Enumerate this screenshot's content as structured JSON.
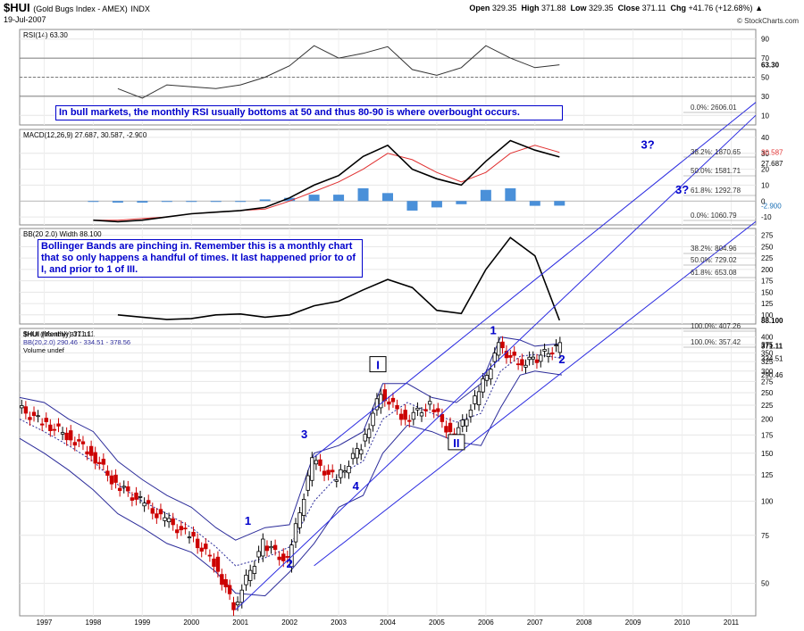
{
  "header": {
    "symbol": "$HUI",
    "name": "(Gold Bugs Index - AMEX)",
    "exchange": "INDX",
    "date": "19-Jul-2007",
    "open_label": "Open",
    "open": "329.35",
    "high_label": "High",
    "high": "371.88",
    "low_label": "Low",
    "low": "329.35",
    "close_label": "Close",
    "close": "371.11",
    "chg_label": "Chg",
    "chg": "+41.76 (+12.68%)",
    "chg_icon": "triangle-up-icon",
    "brand": "© StockCharts.com",
    "accent_color": "#0000cc",
    "up_color": "#000000",
    "down_color": "#cc0000"
  },
  "annotations": {
    "rsi_note": "In bull markets, the monthly RSI usually bottoms at 50 and thus 80-90 is where overbought occurs.",
    "bb_note": "Bollinger Bands are pinching in. Remember this is a monthly chart that so only happens a handful of times. It last happened prior to  of I, and prior to 1 of III.",
    "wave_labels": [
      {
        "text": "1",
        "x": 2001.15,
        "y": 82
      },
      {
        "text": "2",
        "x": 2002.0,
        "y": 57
      },
      {
        "text": "3",
        "x": 2002.3,
        "y": 170
      },
      {
        "text": "4",
        "x": 2003.35,
        "y": 110
      },
      {
        "text": "I",
        "x": 2003.8,
        "y": 305
      },
      {
        "text": "II",
        "x": 2005.4,
        "y": 158
      },
      {
        "text": "1",
        "x": 2006.15,
        "y": 410
      },
      {
        "text": "2",
        "x": 2007.55,
        "y": 320
      },
      {
        "text": "3?",
        "x": 2009.3,
        "y": 1960
      },
      {
        "text": "3?",
        "x": 2010.0,
        "y": 1340
      }
    ]
  },
  "chart_data": [
    {
      "type": "line",
      "title": "RSI(14) 63.30",
      "indicator": "RSI(14)",
      "last_value": "63.30",
      "yticks": [
        10,
        30,
        50,
        70,
        90
      ],
      "ylim": [
        0,
        100
      ],
      "levels": [
        70,
        50,
        30
      ],
      "x": [
        1998.5,
        1999.0,
        1999.5,
        2000.0,
        2000.5,
        2001.0,
        2001.5,
        2002.0,
        2002.5,
        2003.0,
        2003.5,
        2004.0,
        2004.5,
        2005.0,
        2005.5,
        2006.0,
        2006.5,
        2007.0,
        2007.5
      ],
      "values": [
        38,
        28,
        42,
        40,
        38,
        42,
        50,
        62,
        83,
        70,
        75,
        82,
        58,
        52,
        60,
        83,
        70,
        60,
        63
      ]
    },
    {
      "type": "line",
      "title": "MACD(12,26,9) 27.687, 30.587, -2.900",
      "indicator": "MACD(12,26,9)",
      "macd_value": "27.687",
      "signal_value": "30.587",
      "hist_value": "-2.900",
      "yticks": [
        -10,
        0,
        10,
        20,
        30,
        40
      ],
      "ylim": [
        -15,
        45
      ],
      "labels": {
        "macd": "27.687",
        "signal": "30.587",
        "hist": "-2.900"
      },
      "x": [
        1998.0,
        1998.5,
        1999.0,
        1999.5,
        2000.0,
        2000.5,
        2001.0,
        2001.5,
        2002.0,
        2002.5,
        2003.0,
        2003.5,
        2004.0,
        2004.5,
        2005.0,
        2005.5,
        2006.0,
        2006.5,
        2007.0,
        2007.5
      ],
      "series": [
        {
          "name": "MACD",
          "values": [
            -12,
            -13,
            -12,
            -10,
            -8,
            -7,
            -6,
            -4,
            2,
            10,
            16,
            28,
            35,
            20,
            14,
            10,
            25,
            38,
            32,
            27.687
          ]
        },
        {
          "name": "Signal",
          "values": [
            -12,
            -12,
            -11,
            -10,
            -8,
            -7,
            -6,
            -5,
            0,
            6,
            12,
            20,
            30,
            26,
            18,
            12,
            18,
            30,
            35,
            30.587
          ]
        },
        {
          "name": "Histogram",
          "values": [
            0,
            -1,
            -1,
            0,
            0,
            0,
            0,
            1,
            2,
            4,
            4,
            8,
            5,
            -6,
            -4,
            -2,
            7,
            8,
            -3,
            -2.9
          ]
        }
      ]
    },
    {
      "type": "line",
      "title": "BB(20,2.0) Width 88.100",
      "indicator": "BB(20,2.0) Width",
      "last_value": "88.100",
      "yticks": [
        100,
        125,
        150,
        175,
        200,
        225,
        250,
        275
      ],
      "ylim": [
        80,
        290
      ],
      "x": [
        1998.5,
        1999.0,
        1999.5,
        2000.0,
        2000.5,
        2001.0,
        2001.5,
        2002.0,
        2002.5,
        2003.0,
        2003.5,
        2004.0,
        2004.5,
        2005.0,
        2005.5,
        2006.0,
        2006.5,
        2007.0,
        2007.5
      ],
      "values": [
        100,
        95,
        90,
        92,
        100,
        102,
        95,
        100,
        120,
        130,
        155,
        178,
        160,
        110,
        103,
        200,
        270,
        230,
        88.1
      ]
    },
    {
      "type": "candlestick",
      "title": "$HUI (Monthly) 371.11",
      "series_names": [
        "$HUI (Monthly) 371.11",
        "BB(20,2.0) 290.46 - 334.51 - 378.56",
        "Volume undef"
      ],
      "last_close": "371.11",
      "bb_upper": "378.56",
      "bb_mid": "334.51",
      "bb_lower": "290.46",
      "yscale": "log",
      "yticks": [
        50,
        75,
        100,
        125,
        150,
        175,
        200,
        225,
        250,
        275,
        300,
        325,
        350,
        375,
        400
      ],
      "ylim": [
        38,
        430
      ],
      "xticks": [
        "1997",
        "1998",
        "1999",
        "2000",
        "2001",
        "2002",
        "2003",
        "2004",
        "2005",
        "2006",
        "2007",
        "2008",
        "2009",
        "2010",
        "2011"
      ],
      "x": [
        1996.5,
        1997.0,
        1997.5,
        1998.0,
        1998.5,
        1999.0,
        1999.5,
        2000.0,
        2000.5,
        2000.9,
        2001.5,
        2002.0,
        2002.5,
        2003.0,
        2003.5,
        2003.9,
        2004.4,
        2004.9,
        2005.4,
        2005.9,
        2006.3,
        2006.7,
        2007.0,
        2007.55
      ],
      "close": [
        220,
        195,
        175,
        150,
        115,
        100,
        85,
        75,
        60,
        41,
        70,
        60,
        140,
        120,
        160,
        250,
        200,
        225,
        170,
        250,
        370,
        320,
        330,
        371.11
      ],
      "upper_band": [
        240,
        230,
        200,
        180,
        140,
        120,
        105,
        95,
        80,
        72,
        80,
        82,
        150,
        160,
        180,
        270,
        270,
        240,
        230,
        270,
        400,
        390,
        370,
        378.56
      ],
      "mid_band": [
        200,
        180,
        160,
        140,
        115,
        100,
        90,
        80,
        68,
        58,
        62,
        68,
        100,
        125,
        140,
        200,
        230,
        210,
        195,
        210,
        300,
        340,
        345,
        334.51
      ],
      "lower_band": [
        170,
        150,
        130,
        110,
        90,
        80,
        70,
        65,
        55,
        46,
        45,
        55,
        70,
        95,
        105,
        150,
        190,
        180,
        165,
        160,
        220,
        290,
        300,
        290.46
      ],
      "fib_levels": [
        {
          "label": "0.0%: 2606.01",
          "value": 2606.01
        },
        {
          "label": "38.2%: 1870.65",
          "value": 1870.65
        },
        {
          "label": "50.0%: 1581.71",
          "value": 1581.71
        },
        {
          "label": "61.8%: 1292.78",
          "value": 1292.78
        },
        {
          "label": "0.0%: 1060.79",
          "value": 1060.79
        },
        {
          "label": "38.2%: 804.96",
          "value": 804.96
        },
        {
          "label": "50.0%: 729.02",
          "value": 729.02
        },
        {
          "label": "61.8%: 653.08",
          "value": 653.08
        },
        {
          "label": "100.0%: 407.26",
          "value": 407.26
        },
        {
          "label": "100.0%: 357.42",
          "value": 357.42
        }
      ],
      "channel_lower": [
        [
          2000.9,
          40
        ],
        [
          2011.5,
          2600
        ]
      ],
      "channel_upper": [
        [
          2002.5,
          145
        ],
        [
          2011.5,
          2900
        ]
      ],
      "channel_base": [
        [
          2002.5,
          58
        ],
        [
          2011.5,
          1060
        ]
      ]
    }
  ]
}
